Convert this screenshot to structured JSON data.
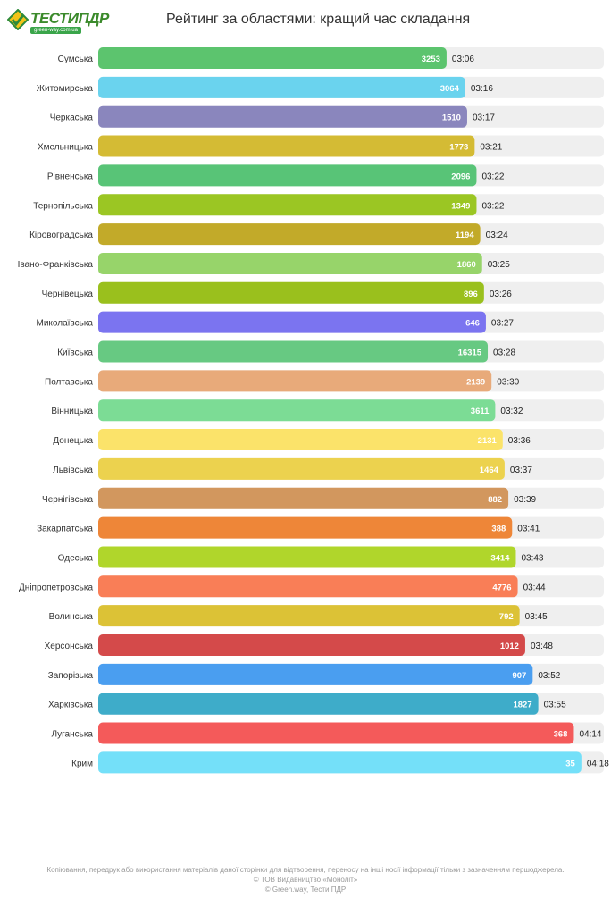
{
  "header": {
    "logo_text": "ТЕСТИПДР",
    "logo_sub": "green-way.com.ua"
  },
  "chart_data": {
    "type": "bar",
    "orientation": "horizontal",
    "title": "Рейтинг за областями: кращий час складання",
    "categories": [
      "Сумська",
      "Житомирська",
      "Черкаська",
      "Хмельницька",
      "Рівненська",
      "Тернопільська",
      "Кіровоградська",
      "Івано-Франківська",
      "Чернівецька",
      "Миколаївська",
      "Київська",
      "Полтавська",
      "Вінницька",
      "Донецька",
      "Львівська",
      "Чернігівська",
      "Закарпатська",
      "Одеська",
      "Дніпропетровська",
      "Волинська",
      "Херсонська",
      "Запорізька",
      "Харківська",
      "Луганська",
      "Крим"
    ],
    "times": [
      "03:06",
      "03:16",
      "03:17",
      "03:21",
      "03:22",
      "03:22",
      "03:24",
      "03:25",
      "03:26",
      "03:27",
      "03:28",
      "03:30",
      "03:32",
      "03:36",
      "03:37",
      "03:39",
      "03:41",
      "03:43",
      "03:44",
      "03:45",
      "03:48",
      "03:52",
      "03:55",
      "04:14",
      "04:18"
    ],
    "time_seconds": [
      186,
      196,
      197,
      201,
      202,
      202,
      204,
      205,
      206,
      207,
      208,
      210,
      212,
      216,
      217,
      219,
      221,
      223,
      224,
      225,
      228,
      232,
      235,
      254,
      258
    ],
    "counts": [
      "3253",
      "3064",
      "1510",
      "1773",
      "2096",
      "1349",
      "1194",
      "1860",
      "896",
      "646",
      "16315",
      "2139",
      "3611",
      "2131",
      "1464",
      "882",
      "388",
      "3414",
      "4776",
      "792",
      "1012",
      "907",
      "1827",
      "368",
      "35"
    ],
    "colors": [
      "#5cc46e",
      "#6ad3ee",
      "#8a86bd",
      "#d4bb34",
      "#58c477",
      "#9bc623",
      "#c2aa29",
      "#97d46a",
      "#9ac01d",
      "#7b74f0",
      "#67c982",
      "#e8aa7a",
      "#7cdc95",
      "#fbe36a",
      "#ecd24e",
      "#d2975e",
      "#ee8638",
      "#b0d62b",
      "#f97e57",
      "#dcc236",
      "#d44a4a",
      "#4a9ef0",
      "#3eacc9",
      "#f45a5a",
      "#74e0f9"
    ],
    "axis_min_seconds": 0,
    "axis_max_seconds": 270,
    "track_color": "#efefef"
  },
  "footer": {
    "line1": "Копіювання, передрук або використання матеріалів даної сторінки для відтворення, переносу на інші носії інформації тільки з зазначенням першоджерела.",
    "line2": "© ТОВ Видавництво «Моноліт»",
    "line3": "© Green.way, Тести ПДР"
  }
}
